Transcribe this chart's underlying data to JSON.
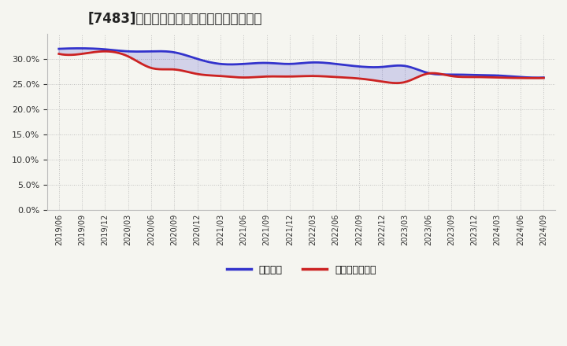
{
  "title": "[7483]　固定比率、固定長期適合率の推移",
  "x_labels": [
    "2019/06",
    "2019/09",
    "2019/12",
    "2020/03",
    "2020/06",
    "2020/09",
    "2020/12",
    "2021/03",
    "2021/06",
    "2021/09",
    "2021/12",
    "2022/03",
    "2022/06",
    "2022/09",
    "2022/12",
    "2023/03",
    "2023/06",
    "2023/09",
    "2023/12",
    "2024/03",
    "2024/06",
    "2024/09"
  ],
  "fixed_ratio": [
    32.0,
    32.1,
    31.9,
    31.5,
    31.5,
    31.3,
    30.0,
    29.0,
    29.0,
    29.2,
    29.0,
    29.3,
    29.0,
    28.5,
    28.4,
    28.6,
    27.2,
    26.9,
    26.8,
    26.7,
    26.4,
    26.3
  ],
  "fixed_long_ratio": [
    31.0,
    31.0,
    31.5,
    30.5,
    28.2,
    27.9,
    27.0,
    26.6,
    26.3,
    26.5,
    26.5,
    26.6,
    26.4,
    26.1,
    25.5,
    25.4,
    27.1,
    26.6,
    26.4,
    26.3,
    26.2,
    26.2
  ],
  "blue_color": "#3333cc",
  "red_color": "#cc2222",
  "background_color": "#f5f5f0",
  "grid_color": "#aaaaaa",
  "ylim": [
    0.0,
    0.35
  ],
  "yticks": [
    0.0,
    0.05,
    0.1,
    0.15,
    0.2,
    0.25,
    0.3
  ],
  "legend_fixed": "固定比率",
  "legend_fixed_long": "固定長期適合率"
}
